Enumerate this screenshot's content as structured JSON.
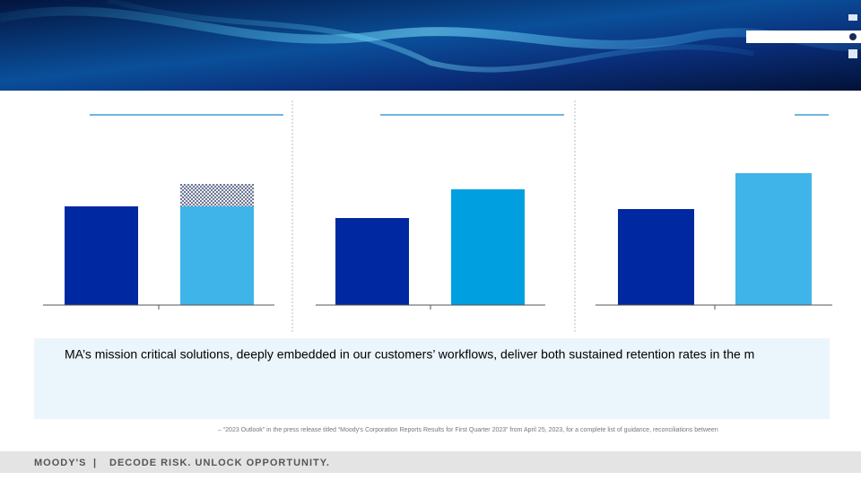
{
  "chart_data": [
    {
      "type": "bar",
      "categories": [
        null,
        null
      ],
      "series": [
        {
          "colors": [
            "#0028a0",
            "#3fb4e8"
          ],
          "values": [
            110,
            110
          ]
        },
        {
          "colors": [
            "#1b2a5a",
            "#1b2a5a"
          ],
          "hatched": true,
          "values": [
            null,
            25
          ]
        }
      ]
    },
    {
      "type": "bar",
      "categories": [
        null,
        null
      ],
      "series": [
        {
          "colors": [
            "#0028a0",
            "#00a0e0"
          ],
          "values": [
            97,
            129
          ]
        }
      ]
    },
    {
      "type": "bar",
      "categories": [
        null,
        null
      ],
      "series": [
        {
          "colors": [
            "#0028a0",
            "#3fb4e8"
          ],
          "values": [
            107,
            147
          ]
        }
      ]
    }
  ],
  "body": {
    "text": "MA’s mission critical solutions, deeply embedded in our customers’ workflows, deliver both sustained retention rates in the m",
    "footnote": "– “2023 Outlook” in the press release titled “Moody's Corporation Reports Results for First Quarter 2023” from April 25, 2023, for a complete list of guidance, reconciliations between"
  },
  "footer": {
    "brand": "MOODY'S",
    "separator": "|",
    "tagline": "DECODE RISK. UNLOCK OPPORTUNITY."
  }
}
